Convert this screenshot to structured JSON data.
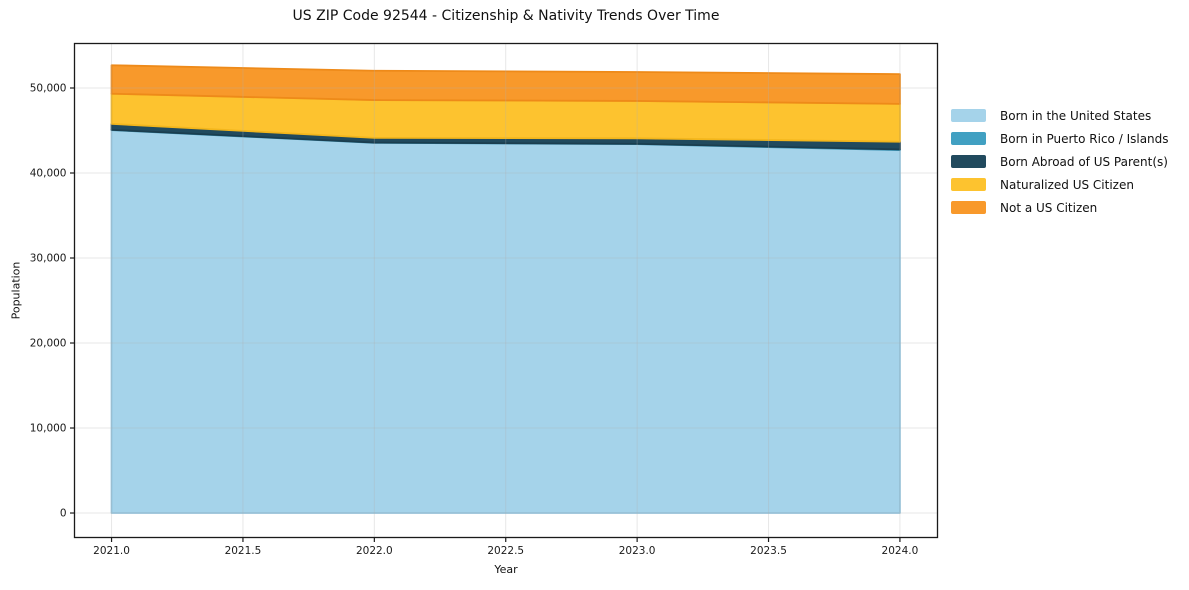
{
  "chart_data": {
    "type": "area",
    "stacked": true,
    "title": "US ZIP Code 92544 - Citizenship & Nativity Trends Over Time",
    "xlabel": "Year",
    "ylabel": "Population",
    "x": [
      2021,
      2022,
      2023,
      2024
    ],
    "series": [
      {
        "name": "Born in the United States",
        "color": "#a5d3ea",
        "edge": "#92c5df",
        "values": [
          45050,
          43550,
          43400,
          42700
        ]
      },
      {
        "name": "Born in Puerto Rico / Islands",
        "color": "#41a0c2",
        "edge": "#3891b2",
        "values": [
          30,
          30,
          30,
          80
        ]
      },
      {
        "name": "Born Abroad of US Parent(s)",
        "color": "#214a5e",
        "edge": "#1b3e4f",
        "values": [
          700,
          550,
          650,
          900
        ]
      },
      {
        "name": "Naturalized US Citizen",
        "color": "#fdc32f",
        "edge": "#f3b61c",
        "values": [
          3550,
          4450,
          4400,
          4450
        ]
      },
      {
        "name": "Not a US Citizen",
        "color": "#f8992b",
        "edge": "#ee8a19",
        "values": [
          3350,
          3450,
          3400,
          3500
        ]
      }
    ],
    "xlim": [
      2020.859,
      2024.143
    ],
    "ylim": [
      -2880,
      55235
    ],
    "x_ticks": {
      "values": [
        2021.0,
        2021.5,
        2022.0,
        2022.5,
        2023.0,
        2023.5,
        2024.0
      ],
      "labels": [
        "2021.0",
        "2021.5",
        "2022.0",
        "2022.5",
        "2023.0",
        "2023.5",
        "2024.0"
      ]
    },
    "y_ticks": {
      "values": [
        0,
        10000,
        20000,
        30000,
        40000,
        50000
      ],
      "labels": [
        "0",
        "10,000",
        "20,000",
        "30,000",
        "40,000",
        "50,000"
      ]
    },
    "grid": true,
    "grid_color": "#b0b0b0",
    "grid_alpha": 0.3,
    "spine_color": "#1a1a1a",
    "legend_position": "right of plot, no frame"
  }
}
